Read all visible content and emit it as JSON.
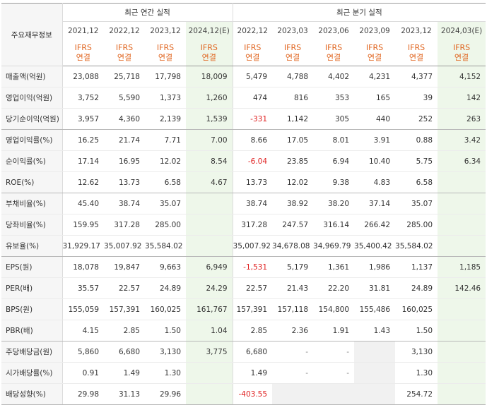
{
  "header": {
    "row_label": "주요재무정보",
    "annual_group": "최근 연간 실적",
    "quarter_group": "최근 분기 실적",
    "periods": [
      "2021,12",
      "2022,12",
      "2023,12",
      "2024,12(E)",
      "2022,12",
      "2023,03",
      "2023,06",
      "2023,09",
      "2023,12",
      "2024,03(E)"
    ],
    "ifrs_top": "IFRS",
    "ifrs_bottom": "연결"
  },
  "rows": [
    {
      "label": "매출액(억원)",
      "values": [
        "23,088",
        "25,718",
        "17,798",
        "18,009",
        "5,479",
        "4,788",
        "4,402",
        "4,231",
        "4,377",
        "4,152"
      ]
    },
    {
      "label": "영업이익(억원)",
      "values": [
        "3,752",
        "5,590",
        "1,373",
        "1,260",
        "474",
        "816",
        "353",
        "165",
        "39",
        "142"
      ]
    },
    {
      "label": "당기순이익(억원)",
      "values": [
        "3,957",
        "4,360",
        "2,139",
        "1,539",
        "-331",
        "1,142",
        "305",
        "440",
        "252",
        "263"
      ]
    },
    {
      "label": "영업이익률(%)",
      "values": [
        "16.25",
        "21.74",
        "7.71",
        "7.00",
        "8.66",
        "17.05",
        "8.01",
        "3.91",
        "0.88",
        "3.42"
      ]
    },
    {
      "label": "순이익률(%)",
      "values": [
        "17.14",
        "16.95",
        "12.02",
        "8.54",
        "-6.04",
        "23.85",
        "6.94",
        "10.40",
        "5.75",
        "6.34"
      ]
    },
    {
      "label": "ROE(%)",
      "values": [
        "12.62",
        "13.73",
        "6.58",
        "4.67",
        "13.73",
        "12.02",
        "9.38",
        "4.83",
        "6.58",
        ""
      ]
    },
    {
      "label": "부채비율(%)",
      "values": [
        "45.40",
        "38.74",
        "35.07",
        "",
        "38.74",
        "38.92",
        "38.20",
        "37.14",
        "35.07",
        ""
      ]
    },
    {
      "label": "당좌비율(%)",
      "values": [
        "159.95",
        "317.28",
        "285.00",
        "",
        "317.28",
        "247.57",
        "316.14",
        "266.42",
        "285.00",
        ""
      ]
    },
    {
      "label": "유보율(%)",
      "values": [
        "31,929.17",
        "35,007.92",
        "35,584.02",
        "",
        "35,007.92",
        "34,678.08",
        "34,969.79",
        "35,400.42",
        "35,584.02",
        ""
      ]
    },
    {
      "label": "EPS(원)",
      "values": [
        "18,078",
        "19,847",
        "9,663",
        "6,949",
        "-1,531",
        "5,179",
        "1,361",
        "1,986",
        "1,137",
        "1,185"
      ]
    },
    {
      "label": "PER(배)",
      "values": [
        "35.57",
        "22.57",
        "24.89",
        "24.29",
        "22.57",
        "21.43",
        "22.20",
        "31.81",
        "24.89",
        "142.46"
      ]
    },
    {
      "label": "BPS(원)",
      "values": [
        "155,059",
        "157,391",
        "160,025",
        "161,767",
        "157,391",
        "157,118",
        "154,800",
        "155,486",
        "160,025",
        ""
      ]
    },
    {
      "label": "PBR(배)",
      "values": [
        "4.15",
        "2.85",
        "1.50",
        "1.04",
        "2.85",
        "2.36",
        "1.91",
        "1.43",
        "1.50",
        ""
      ]
    },
    {
      "label": "주당배당금(원)",
      "values": [
        "5,860",
        "6,680",
        "3,130",
        "3,775",
        "6,680",
        "-",
        "-",
        "",
        "3,130",
        ""
      ]
    },
    {
      "label": "시가배당률(%)",
      "values": [
        "0.91",
        "1.49",
        "1.30",
        "",
        "1.49",
        "-",
        "-",
        "",
        "1.30",
        ""
      ]
    },
    {
      "label": "배당성향(%)",
      "values": [
        "29.98",
        "31.13",
        "29.96",
        "",
        "-403.55",
        "",
        "",
        "",
        "254.72",
        ""
      ]
    }
  ]
}
